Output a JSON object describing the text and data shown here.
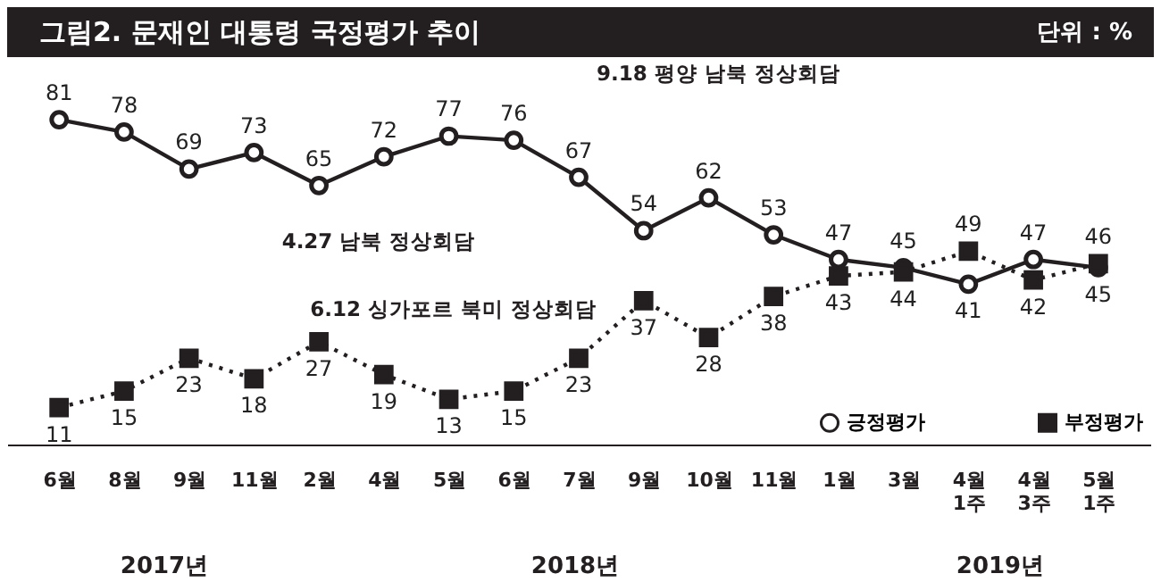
{
  "chart_data": {
    "type": "line",
    "title": "그림2. 문재인 대통령 국정평가 추이",
    "subtitle": "단위 : %",
    "categories": [
      "6월",
      "8월",
      "9월",
      "11월",
      "2월",
      "4월",
      "5월",
      "6월",
      "7월",
      "9월",
      "10월",
      "11월",
      "1월",
      "3월",
      "4월 1주",
      "4월 3주",
      "5월 1주"
    ],
    "series": [
      {
        "name": "긍정평가",
        "color": "#231f20",
        "line_style": "solid",
        "marker": "circle",
        "values": [
          81,
          78,
          69,
          73,
          65,
          72,
          77,
          76,
          67,
          54,
          62,
          53,
          47,
          45,
          41,
          47,
          45
        ]
      },
      {
        "name": "부정평가",
        "color": "#231f20",
        "line_style": "dotted",
        "marker": "square",
        "values": [
          11,
          15,
          23,
          18,
          27,
          19,
          13,
          15,
          23,
          37,
          28,
          38,
          43,
          44,
          49,
          42,
          46
        ]
      }
    ],
    "annotations": [
      "9.18 평양 남북 정상회담",
      "4.27 남북 정상회담",
      "6.12 싱가포르 북미 정상회담",
      "2017년",
      "2018년",
      "2019년"
    ],
    "data_labels": true,
    "legend": "bottom right",
    "grid": false
  }
}
